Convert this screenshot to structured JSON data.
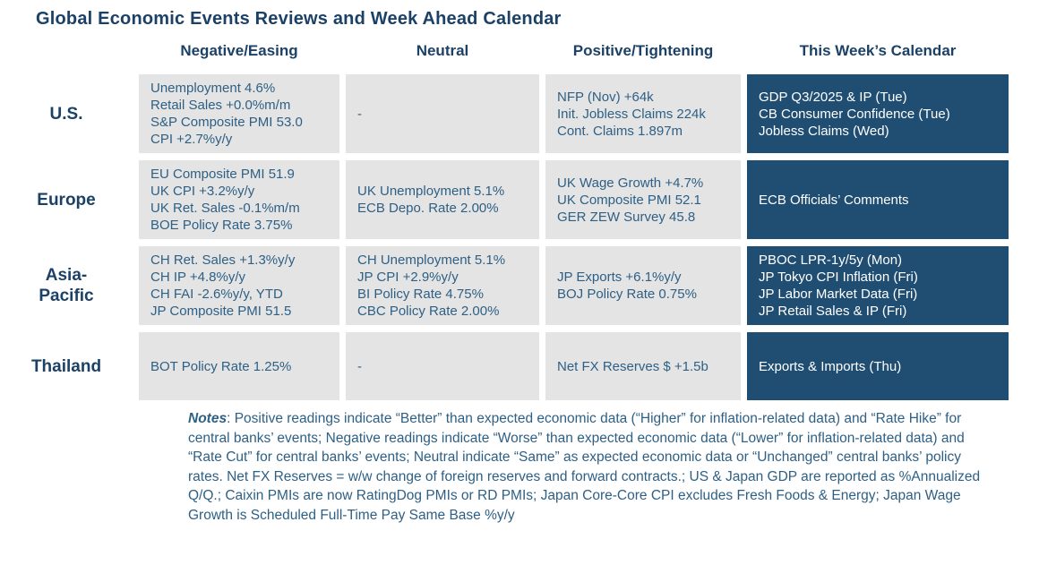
{
  "title": "Global Economic Events Reviews and Week Ahead Calendar",
  "table": {
    "headers": [
      "Negative/Easing",
      "Neutral",
      "Positive/Tightening",
      "This Week’s Calendar"
    ],
    "rows": [
      {
        "region": "U.S.",
        "negative": [
          "Unemployment 4.6%",
          "Retail Sales +0.0%m/m",
          "S&P Composite PMI 53.0",
          "CPI +2.7%y/y"
        ],
        "neutral": [
          "-"
        ],
        "positive": [
          "NFP (Nov) +64k",
          "Init. Jobless Claims 224k",
          "Cont. Claims 1.897m"
        ],
        "calendar": [
          "GDP Q3/2025 & IP (Tue)",
          "CB Consumer Confidence (Tue)",
          "Jobless Claims (Wed)"
        ]
      },
      {
        "region": "Europe",
        "negative": [
          "EU Composite PMI 51.9",
          "UK CPI +3.2%y/y",
          "UK Ret. Sales -0.1%m/m",
          "BOE Policy Rate 3.75%"
        ],
        "neutral": [
          "UK Unemployment 5.1%",
          "ECB Depo. Rate 2.00%"
        ],
        "positive": [
          "UK Wage Growth +4.7%",
          "UK Composite PMI 52.1",
          "GER ZEW Survey 45.8"
        ],
        "calendar": [
          "ECB Officials’ Comments"
        ]
      },
      {
        "region": [
          "Asia-",
          "Pacific"
        ],
        "negative": [
          "CH Ret. Sales +1.3%y/y",
          "CH IP +4.8%y/y",
          "CH FAI -2.6%y/y, YTD",
          "JP Composite PMI 51.5"
        ],
        "neutral": [
          "CH Unemployment 5.1%",
          "JP CPI +2.9%y/y",
          "BI Policy Rate 4.75%",
          "CBC Policy Rate 2.00%"
        ],
        "positive": [
          "JP Exports +6.1%y/y",
          "BOJ Policy Rate 0.75%"
        ],
        "calendar": [
          "PBOC LPR-1y/5y (Mon)",
          "JP Tokyo CPI Inflation (Fri)",
          "JP Labor Market Data (Fri)",
          "JP Retail Sales & IP (Fri)"
        ]
      },
      {
        "region": "Thailand",
        "negative": [
          "BOT Policy Rate 1.25%"
        ],
        "neutral": [
          "-"
        ],
        "positive": [
          "Net FX Reserves $ +1.5b"
        ],
        "calendar": [
          "Exports & Imports (Thu)"
        ]
      }
    ]
  },
  "notes": {
    "label": "Notes",
    "text": ": Positive readings indicate “Better” than expected economic data (“Higher” for inflation-related data) and “Rate Hike” for central banks’ events; Negative readings indicate “Worse” than expected economic data (“Lower” for inflation-related data) and “Rate Cut” for central banks’ events; Neutral indicate “Same” as expected economic data or “Unchanged” central banks’ policy rates. Net FX Reserves = w/w change of foreign reserves and forward contracts.; US & Japan GDP are reported as %Annualized Q/Q.; Caixin PMIs are now RatingDog PMIs or RD PMIs; Japan Core-Core CPI excludes Fresh Foods & Energy; Japan Wage Growth is Scheduled Full-Time Pay Same Base %y/y"
  },
  "colors": {
    "navy_text": "#1c4166",
    "steel_text": "#2e6085",
    "cell_gray_bg": "#e4e4e4",
    "cell_dark_bg": "#204e73",
    "calendar_text": "#ffffff"
  }
}
